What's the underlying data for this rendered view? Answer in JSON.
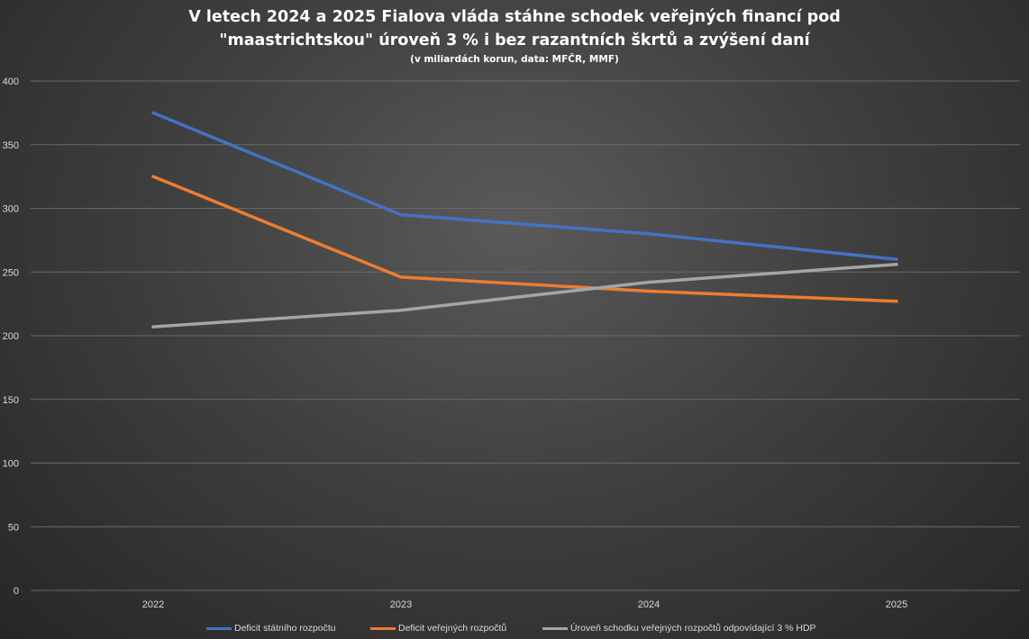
{
  "chart_data": {
    "type": "line",
    "title_line1": "V letech 2024 a 2025 Fialova vláda stáhne schodek veřejných financí pod",
    "title_line2": "\"maastrichtskou\" úroveň 3 % i bez razantních škrtů a zvýšení daní",
    "subtitle": "(v miliardách korun, data: MFČR, MMF)",
    "categories": [
      "2022",
      "2023",
      "2024",
      "2025"
    ],
    "ylim": [
      0,
      400
    ],
    "yticks": [
      "0",
      "50",
      "100",
      "150",
      "200",
      "250",
      "300",
      "350",
      "400"
    ],
    "grid": true,
    "legend_position": "bottom",
    "series": [
      {
        "name": "Deficit státního rozpočtu",
        "values": [
          375,
          295,
          280,
          260
        ],
        "color": "#4472c4"
      },
      {
        "name": "Deficit veřejných rozpočtů",
        "values": [
          325,
          246,
          235,
          227
        ],
        "color": "#ed7d31"
      },
      {
        "name": "Úroveň schodku veřejných rozpočtů odpovídající 3 % HDP",
        "values": [
          207,
          220,
          242,
          256
        ],
        "color": "#a5a5a5"
      }
    ]
  }
}
